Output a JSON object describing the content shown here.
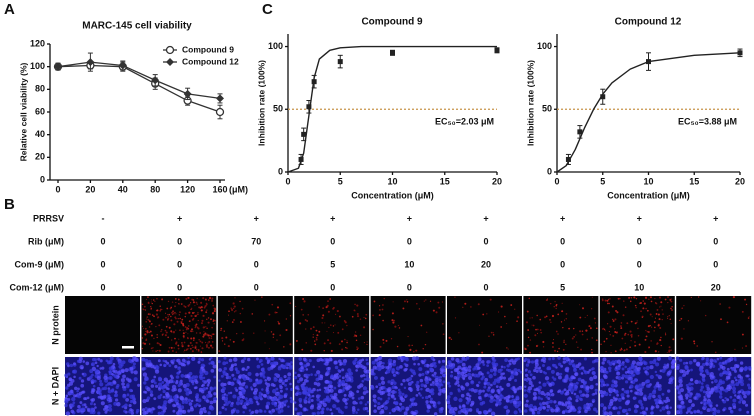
{
  "panel_labels": [
    "A",
    "B",
    "C"
  ],
  "chart_data": [
    {
      "type": "line",
      "title": "MARC-145 cell viability",
      "ylabel": "Relative cell viability (%)",
      "xlabel": "(μM)",
      "categories": [
        0,
        20,
        40,
        80,
        120,
        160
      ],
      "ylim": [
        0,
        120
      ],
      "yticks": [
        0,
        20,
        40,
        60,
        80,
        100,
        120
      ],
      "legend": "upper right",
      "series": [
        {
          "name": "Compound 9",
          "color": "#333333",
          "marker": "open-circle",
          "values": [
            100,
            101,
            100,
            85,
            70,
            60
          ],
          "errors": [
            3,
            3,
            4,
            5,
            4,
            6
          ]
        },
        {
          "name": "Compound 12",
          "color": "#333333",
          "marker": "diamond",
          "values": [
            100,
            104,
            101,
            88,
            76,
            72
          ],
          "errors": [
            3,
            8,
            4,
            5,
            5,
            4
          ]
        }
      ]
    },
    {
      "type": "scatter",
      "title": "Compound 9",
      "xlabel": "Concentration (μM)",
      "ylabel": "Inhibition rate (100%)",
      "color": "#222222",
      "x": [
        1.25,
        1.5,
        2,
        2.5,
        5,
        10,
        20
      ],
      "values": [
        10,
        30,
        52,
        72,
        88,
        95,
        97
      ],
      "errors": [
        4,
        5,
        5,
        5,
        5,
        2,
        2
      ],
      "fit": {
        "x": [
          0,
          1,
          1.5,
          2,
          2.5,
          3,
          4,
          5,
          7,
          10,
          15,
          20
        ],
        "values": [
          0,
          3,
          15,
          45,
          75,
          90,
          97,
          99,
          100,
          100,
          100,
          100
        ]
      },
      "reference_line": 50,
      "reference_color": "#c8944a",
      "annotation": "EC₅₀=2.03 μM",
      "xlim": [
        0,
        20
      ],
      "xticks": [
        0,
        5,
        10,
        15,
        20
      ],
      "ylim": [
        0,
        110
      ],
      "yticks": [
        0,
        50,
        100
      ]
    },
    {
      "type": "scatter",
      "title": "Compound 12",
      "xlabel": "Concentration (μM)",
      "ylabel": "Inhibition rate (100%)",
      "color": "#222222",
      "x": [
        1.25,
        2.5,
        5,
        10,
        20
      ],
      "values": [
        10,
        32,
        60,
        88,
        95
      ],
      "errors": [
        4,
        5,
        6,
        7,
        3
      ],
      "fit": {
        "x": [
          0,
          1,
          2,
          3,
          4,
          5,
          6,
          8,
          10,
          15,
          20
        ],
        "values": [
          0,
          5,
          18,
          35,
          50,
          62,
          71,
          82,
          88,
          93,
          95
        ]
      },
      "reference_line": 50,
      "reference_color": "#c8944a",
      "annotation": "EC₅₀=3.88 μM",
      "xlim": [
        0,
        20
      ],
      "xticks": [
        0,
        5,
        10,
        15,
        20
      ],
      "ylim": [
        0,
        110
      ],
      "yticks": [
        0,
        50,
        100
      ]
    }
  ],
  "table": {
    "row_labels": [
      "PRRSV",
      "Rib (μM)",
      "Com-9 (μM)",
      "Com-12 (μM)"
    ],
    "rows": [
      [
        "-",
        "+",
        "+",
        "+",
        "+",
        "+",
        "+",
        "+",
        "+"
      ],
      [
        0,
        0,
        70,
        0,
        0,
        0,
        0,
        0,
        0
      ],
      [
        0,
        0,
        0,
        5,
        10,
        20,
        0,
        0,
        0
      ],
      [
        0,
        0,
        0,
        0,
        0,
        0,
        5,
        10,
        20
      ]
    ]
  },
  "image_rows": [
    "N protein",
    "N + DAPI"
  ]
}
